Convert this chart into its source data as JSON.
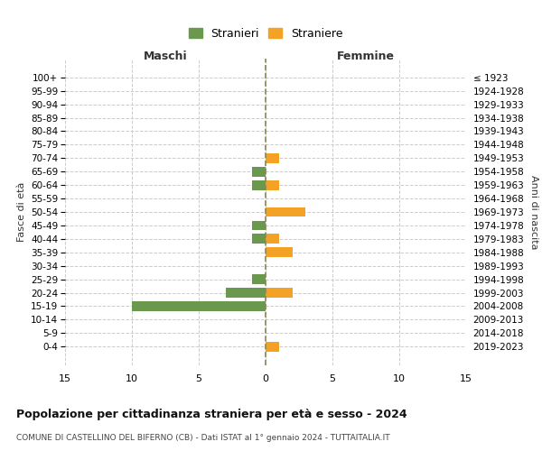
{
  "age_groups": [
    "0-4",
    "5-9",
    "10-14",
    "15-19",
    "20-24",
    "25-29",
    "30-34",
    "35-39",
    "40-44",
    "45-49",
    "50-54",
    "55-59",
    "60-64",
    "65-69",
    "70-74",
    "75-79",
    "80-84",
    "85-89",
    "90-94",
    "95-99",
    "100+"
  ],
  "birth_years": [
    "2019-2023",
    "2014-2018",
    "2009-2013",
    "2004-2008",
    "1999-2003",
    "1994-1998",
    "1989-1993",
    "1984-1988",
    "1979-1983",
    "1974-1978",
    "1969-1973",
    "1964-1968",
    "1959-1963",
    "1954-1958",
    "1949-1953",
    "1944-1948",
    "1939-1943",
    "1934-1938",
    "1929-1933",
    "1924-1928",
    "≤ 1923"
  ],
  "maschi": [
    0,
    0,
    0,
    10,
    3,
    1,
    0,
    0,
    1,
    1,
    0,
    0,
    1,
    1,
    0,
    0,
    0,
    0,
    0,
    0,
    0
  ],
  "femmine": [
    1,
    0,
    0,
    0,
    2,
    0,
    0,
    2,
    1,
    0,
    3,
    0,
    1,
    0,
    1,
    0,
    0,
    0,
    0,
    0,
    0
  ],
  "color_maschi": "#6a994e",
  "color_femmine": "#f4a226",
  "title": "Popolazione per cittadinanza straniera per età e sesso - 2024",
  "subtitle": "COMUNE DI CASTELLINO DEL BIFERNO (CB) - Dati ISTAT al 1° gennaio 2024 - TUTTAITALIA.IT",
  "xlabel_left": "Maschi",
  "xlabel_right": "Femmine",
  "ylabel_left": "Fasce di età",
  "ylabel_right": "Anni di nascita",
  "legend_maschi": "Stranieri",
  "legend_femmine": "Straniere",
  "xlim": 15,
  "background_color": "#ffffff",
  "grid_color": "#cccccc"
}
